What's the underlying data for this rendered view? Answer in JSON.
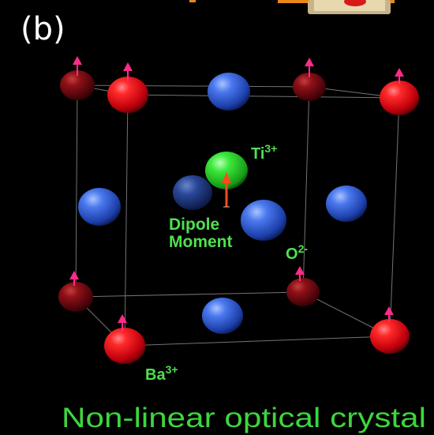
{
  "panel_label": "(b)",
  "labels": {
    "ti_base": "Ti",
    "ti_sup": "3+",
    "dipole_line1": "Dipole",
    "dipole_line2": "Moment",
    "o_base": "O",
    "o_sup": "2-",
    "ba_base": "Ba",
    "ba_sup": "3+"
  },
  "caption": "Non-linear optical crystal",
  "colors": {
    "background": "#000000",
    "label_green": "#4fe04f",
    "caption_green": "#3dd63d",
    "ba_atom": "#e0101e",
    "o_atom": "#3a6ae0",
    "ti_atom": "#33e033",
    "dipole_arrow": "#ff4a1a",
    "spin_arrow": "#ff2b8a"
  }
}
